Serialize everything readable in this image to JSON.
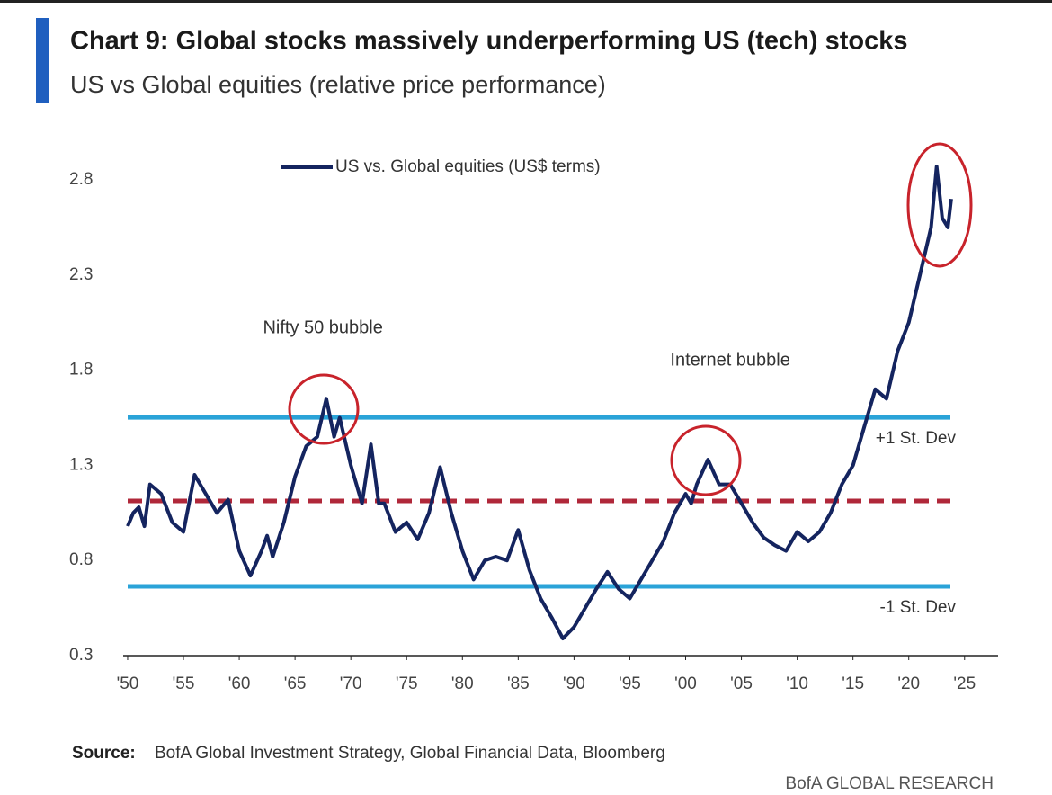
{
  "chart_data": {
    "type": "line",
    "title": "Chart 9: Global stocks massively underperforming US (tech) stocks",
    "subtitle": "US vs Global equities (relative price performance)",
    "source_label": "Source:",
    "source": "BofA Global Investment Strategy, Global Financial Data, Bloomberg",
    "footer": "BofA GLOBAL RESEARCH",
    "xlim": [
      1949.6,
      2028
    ],
    "ylim": [
      0.3,
      2.95
    ],
    "yticks": [
      0.3,
      0.8,
      1.3,
      1.8,
      2.3,
      2.8
    ],
    "xticks": [
      {
        "value": 1950,
        "label": "'50"
      },
      {
        "value": 1955,
        "label": "'55"
      },
      {
        "value": 1960,
        "label": "'60"
      },
      {
        "value": 1965,
        "label": "'65"
      },
      {
        "value": 1970,
        "label": "'70"
      },
      {
        "value": 1975,
        "label": "'75"
      },
      {
        "value": 1980,
        "label": "'80"
      },
      {
        "value": 1985,
        "label": "'85"
      },
      {
        "value": 1990,
        "label": "'90"
      },
      {
        "value": 1995,
        "label": "'95"
      },
      {
        "value": 2000,
        "label": "'00"
      },
      {
        "value": 2005,
        "label": "'05"
      },
      {
        "value": 2010,
        "label": "'10"
      },
      {
        "value": 2015,
        "label": "'15"
      },
      {
        "value": 2020,
        "label": "'20"
      },
      {
        "value": 2025,
        "label": "'25"
      }
    ],
    "reference_lines": [
      {
        "label": "+1 St. Dev",
        "value": 1.552,
        "color": "#2aa3d8"
      },
      {
        "value": 1.113,
        "color": "#b0283a",
        "dashed": true
      },
      {
        "label": "-1 St. Dev",
        "value": 0.664,
        "color": "#2aa3d8"
      }
    ],
    "annotations": [
      {
        "text": "Nifty 50 bubble",
        "x": 1967.5,
        "y": 2.02
      },
      {
        "text": "Internet bubble",
        "x": 2004,
        "y": 1.85
      }
    ],
    "series": [
      {
        "name": "US vs. Global equities (US$ terms)",
        "color": "#14245f",
        "x": [
          1950,
          1950.5,
          1951,
          1951.5,
          1952,
          1953,
          1954,
          1955,
          1956,
          1957,
          1958,
          1959,
          1960,
          1961,
          1962,
          1962.5,
          1963,
          1964,
          1965,
          1966,
          1967,
          1967.8,
          1968.5,
          1969,
          1970,
          1971,
          1971.8,
          1972.5,
          1973,
          1974,
          1975,
          1976,
          1977,
          1978,
          1979,
          1980,
          1981,
          1982,
          1983,
          1984,
          1985,
          1986,
          1987,
          1988,
          1989,
          1990,
          1991,
          1992,
          1993,
          1994,
          1995,
          1996,
          1997,
          1998,
          1999,
          2000,
          2000.5,
          2001,
          2002,
          2003,
          2004,
          2005,
          2006,
          2007,
          2008,
          2009,
          2010,
          2011,
          2012,
          2013,
          2014,
          2015,
          2016,
          2017,
          2018,
          2019,
          2020,
          2021,
          2022,
          2022.5,
          2023,
          2023.5,
          2023.8
        ],
        "values": [
          0.98,
          1.05,
          1.08,
          0.98,
          1.2,
          1.15,
          1.0,
          0.95,
          1.25,
          1.15,
          1.05,
          1.12,
          0.85,
          0.72,
          0.85,
          0.93,
          0.82,
          1.0,
          1.24,
          1.4,
          1.45,
          1.65,
          1.45,
          1.55,
          1.3,
          1.1,
          1.41,
          1.1,
          1.1,
          0.95,
          1.0,
          0.91,
          1.05,
          1.29,
          1.05,
          0.85,
          0.7,
          0.8,
          0.82,
          0.8,
          0.96,
          0.75,
          0.6,
          0.5,
          0.39,
          0.45,
          0.55,
          0.65,
          0.74,
          0.65,
          0.6,
          0.7,
          0.8,
          0.9,
          1.05,
          1.15,
          1.1,
          1.2,
          1.33,
          1.2,
          1.2,
          1.1,
          1.0,
          0.92,
          0.88,
          0.85,
          0.95,
          0.9,
          0.95,
          1.05,
          1.2,
          1.3,
          1.5,
          1.7,
          1.65,
          1.9,
          2.05,
          2.3,
          2.55,
          2.87,
          2.6,
          2.55,
          2.7
        ]
      }
    ]
  }
}
